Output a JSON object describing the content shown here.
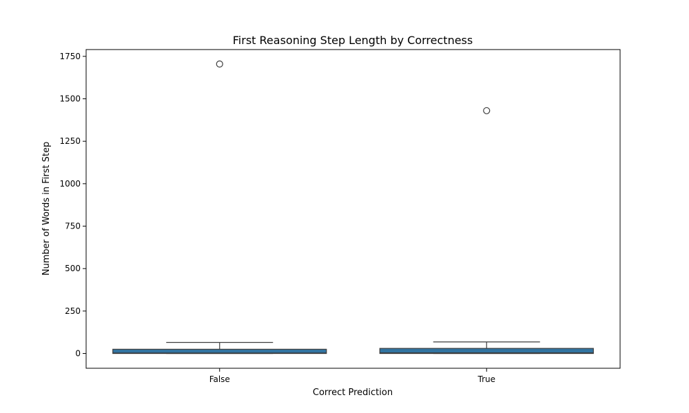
{
  "chart_data": {
    "type": "box",
    "title": "First Reasoning Step Length by Correctness",
    "xlabel": "Correct Prediction",
    "ylabel": "Number of Words in First Step",
    "categories": [
      "False",
      "True"
    ],
    "ylim": [
      -87,
      1790
    ],
    "yticks": [
      0,
      250,
      500,
      750,
      1000,
      1250,
      1500,
      1750
    ],
    "grid": false,
    "boxes": [
      {
        "category": "False",
        "whisker_low": 0,
        "q1": 0,
        "median": 3,
        "q3": 25,
        "whisker_high": 65,
        "outliers": [
          1705
        ]
      },
      {
        "category": "True",
        "whisker_low": 0,
        "q1": 0,
        "median": 4,
        "q3": 30,
        "whisker_high": 68,
        "outliers": [
          1430
        ]
      }
    ],
    "colors": {
      "box_fill": "#3274a1",
      "line": "#3d3d3d",
      "axes": "#000000"
    }
  }
}
